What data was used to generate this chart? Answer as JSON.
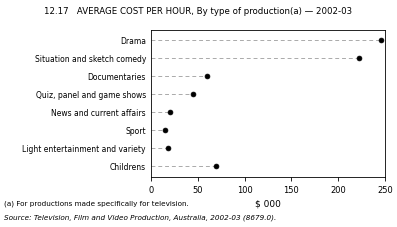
{
  "title": "12.17   AVERAGE COST PER HOUR, By type of production(a) — 2002-03",
  "categories": [
    "Childrens",
    "Light entertainment and variety",
    "Sport",
    "News and current affairs",
    "Quiz, panel and game shows",
    "Documentaries",
    "Situation and sketch comedy",
    "Drama"
  ],
  "values": [
    70,
    18,
    15,
    20,
    45,
    60,
    222,
    246
  ],
  "xlabel": "$ 000",
  "xlim": [
    0,
    250
  ],
  "xticks": [
    0,
    50,
    100,
    150,
    200,
    250
  ],
  "footnote1": "(a) For productions made specifically for television.",
  "footnote2": "Source: Television, Film and Video Production, Australia, 2002-03 (8679.0).",
  "dot_color": "#000000",
  "line_color": "#aaaaaa",
  "background_color": "#ffffff"
}
